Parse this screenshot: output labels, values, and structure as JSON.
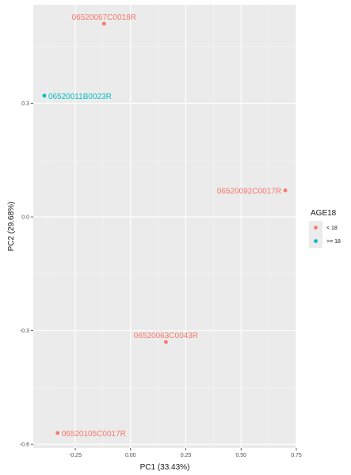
{
  "chart_data": {
    "type": "scatter",
    "title": "",
    "xlabel": "PC1 (33.43%)",
    "ylabel": "PC2 (29.68%)",
    "xlim": [
      -0.44,
      0.75
    ],
    "ylim": [
      -0.61,
      0.56
    ],
    "x_ticks": [
      -0.25,
      0,
      0.25,
      0.5,
      0.75
    ],
    "x_tick_labels": [
      "-0.25",
      "0.00",
      "0.25",
      "0.50",
      "0.75"
    ],
    "y_ticks": [
      -0.6,
      -0.3,
      0,
      0.3
    ],
    "y_tick_labels": [
      "-0.6",
      "-0.3",
      "0.0",
      "0.3"
    ],
    "grid": true,
    "legend": {
      "title": "AGE18",
      "placement": "right",
      "entries": [
        {
          "label": "< 18",
          "color": "#F8766D"
        },
        {
          "label": ">= 18",
          "color": "#00BFC4"
        }
      ]
    },
    "points": [
      {
        "label": "06520067C0018R",
        "x": -0.12,
        "y": 0.51,
        "group": "< 18"
      },
      {
        "label": "06520011B0023R",
        "x": -0.39,
        "y": 0.32,
        "group": ">= 18"
      },
      {
        "label": "06520092C0017R",
        "x": 0.7,
        "y": 0.07,
        "group": "< 18"
      },
      {
        "label": "06520063C0043R",
        "x": 0.16,
        "y": -0.33,
        "group": "< 18"
      },
      {
        "label": "06520105C0017R",
        "x": -0.33,
        "y": -0.57,
        "group": "< 18"
      }
    ]
  },
  "colors": {
    "panel_background": "#EBEBEB",
    "grid_major": "#FFFFFF"
  }
}
